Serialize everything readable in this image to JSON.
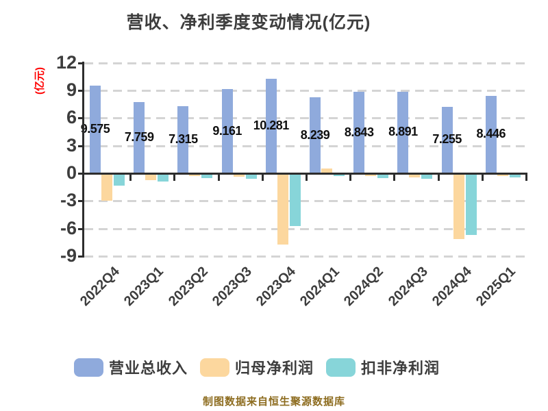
{
  "title": "营收、净利季度变动情况(亿元)",
  "y_axis_title": "(亿元)",
  "footer": "制图数据来自恒生聚源数据库",
  "colors": {
    "revenue_blue": "#8FAADC",
    "net_profit_orange": "#FCD79E",
    "non_gaap_teal": "#87D5D9",
    "axis_title_red": "#FF0000",
    "footer_gold": "#8D6C1F",
    "text_gray": "#3D3D3D",
    "grid_gray": "#D4D4D4",
    "axis_dark": "#2D2D2D"
  },
  "legend": {
    "items": [
      {
        "label": "营业总收入",
        "color": "#8FAADC"
      },
      {
        "label": "归母净利润",
        "color": "#FCD79E"
      },
      {
        "label": "扣非净利润",
        "color": "#87D5D9"
      }
    ]
  },
  "y_ticks": [
    "12",
    "9",
    "6",
    "3",
    "0",
    "-3",
    "-6",
    "-9"
  ],
  "chart_data": {
    "type": "bar",
    "title": "营收、净利季度变动情况(亿元)",
    "xlabel": "",
    "ylabel": "(亿元)",
    "ylim": [
      -9,
      12
    ],
    "ytick_step": 3,
    "grid": "horizontal-dashed",
    "legend_position": "bottom",
    "categories": [
      "2022Q4",
      "2023Q1",
      "2023Q2",
      "2023Q3",
      "2023Q4",
      "2024Q1",
      "2024Q2",
      "2024Q3",
      "2024Q4",
      "2025Q1"
    ],
    "series": [
      {
        "name": "营业总收入",
        "color": "#8FAADC",
        "values": [
          9.575,
          7.759,
          7.315,
          9.161,
          10.281,
          8.239,
          8.843,
          8.891,
          7.255,
          8.446
        ],
        "value_labels": [
          "9.575",
          "7.759",
          "7.315",
          "9.161",
          "10.281",
          "8.239",
          "8.843",
          "8.891",
          "7.255",
          "8.446"
        ]
      },
      {
        "name": "归母净利润",
        "color": "#FCD79E",
        "values": [
          -2.9,
          -0.65,
          -0.25,
          -0.3,
          -7.7,
          0.5,
          -0.25,
          -0.35,
          -7.1,
          -0.25
        ],
        "value_labels": null
      },
      {
        "name": "扣非净利润",
        "color": "#87D5D9",
        "values": [
          -1.3,
          -0.8,
          -0.45,
          -0.55,
          -5.7,
          -0.25,
          -0.45,
          -0.5,
          -6.6,
          -0.35
        ],
        "value_labels": null
      }
    ]
  }
}
